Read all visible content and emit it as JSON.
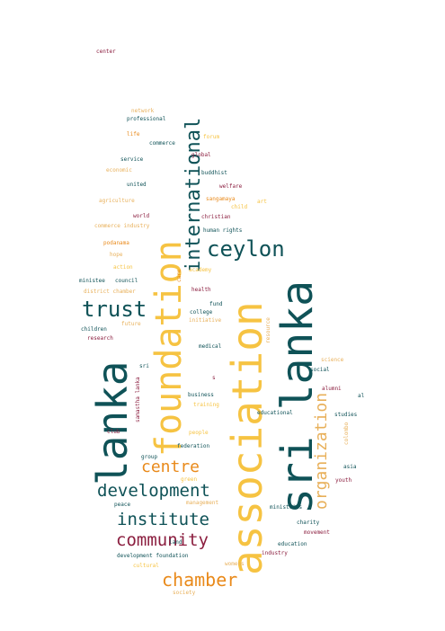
{
  "colors": {
    "teal": "#0f5257",
    "orange": "#e98a1b",
    "yellow": "#f6c342",
    "maroon": "#8b1e3f",
    "tan": "#e8b05a"
  },
  "words": {
    "sri_lanka": "sri lanka",
    "association": "association",
    "foundation": "foundation",
    "lanka": "lanka",
    "international": "international",
    "ceylon": "ceylon",
    "trust": "trust",
    "development": "development",
    "organization": "organization",
    "institute": "institute",
    "community": "community",
    "chamber": "chamber",
    "centre": "centre",
    "center": "center",
    "network": "network",
    "professional": "professional",
    "life": "life",
    "commerce": "commerce",
    "forum": "forum",
    "service": "service",
    "global": "global",
    "economic": "economic",
    "buddhist": "buddhist",
    "united": "united",
    "welfare": "welfare",
    "agriculture": "agriculture",
    "sangamaya": "sangamaya",
    "child": "child",
    "art": "art",
    "world": "world",
    "christian": "christian",
    "commerce_industry": "commerce industry",
    "human_rights": "human rights",
    "podanama": "podanama",
    "hope": "hope",
    "action": "action",
    "academy": "academy",
    "care": "care",
    "ministee": "ministee",
    "council": "council",
    "district_chamber": "district chamber",
    "health": "health",
    "fund": "fund",
    "college": "college",
    "initiative": "initiative",
    "children": "children",
    "future": "future",
    "research": "research",
    "medical": "medical",
    "resource": "resource",
    "sri": "sri",
    "science": "science",
    "social": "social",
    "samastha_lanka": "samastha lanka",
    "s": "s",
    "business": "business",
    "training": "training",
    "alumni": "alumni",
    "al": "al",
    "educational": "educational",
    "studies": "studies",
    "club": "club",
    "people": "people",
    "youth": "youth",
    "asia": "asia",
    "group": "group",
    "federation": "federation",
    "green": "green",
    "colombo": "colombo",
    "peace": "peace",
    "management": "management",
    "ministries": "ministries",
    "charity": "charity",
    "movement": "movement",
    "education": "education",
    "industry": "industry",
    "land": "land",
    "development_foundation": "development foundation",
    "cultural": "cultural",
    "society": "society",
    "womens": "womens"
  }
}
